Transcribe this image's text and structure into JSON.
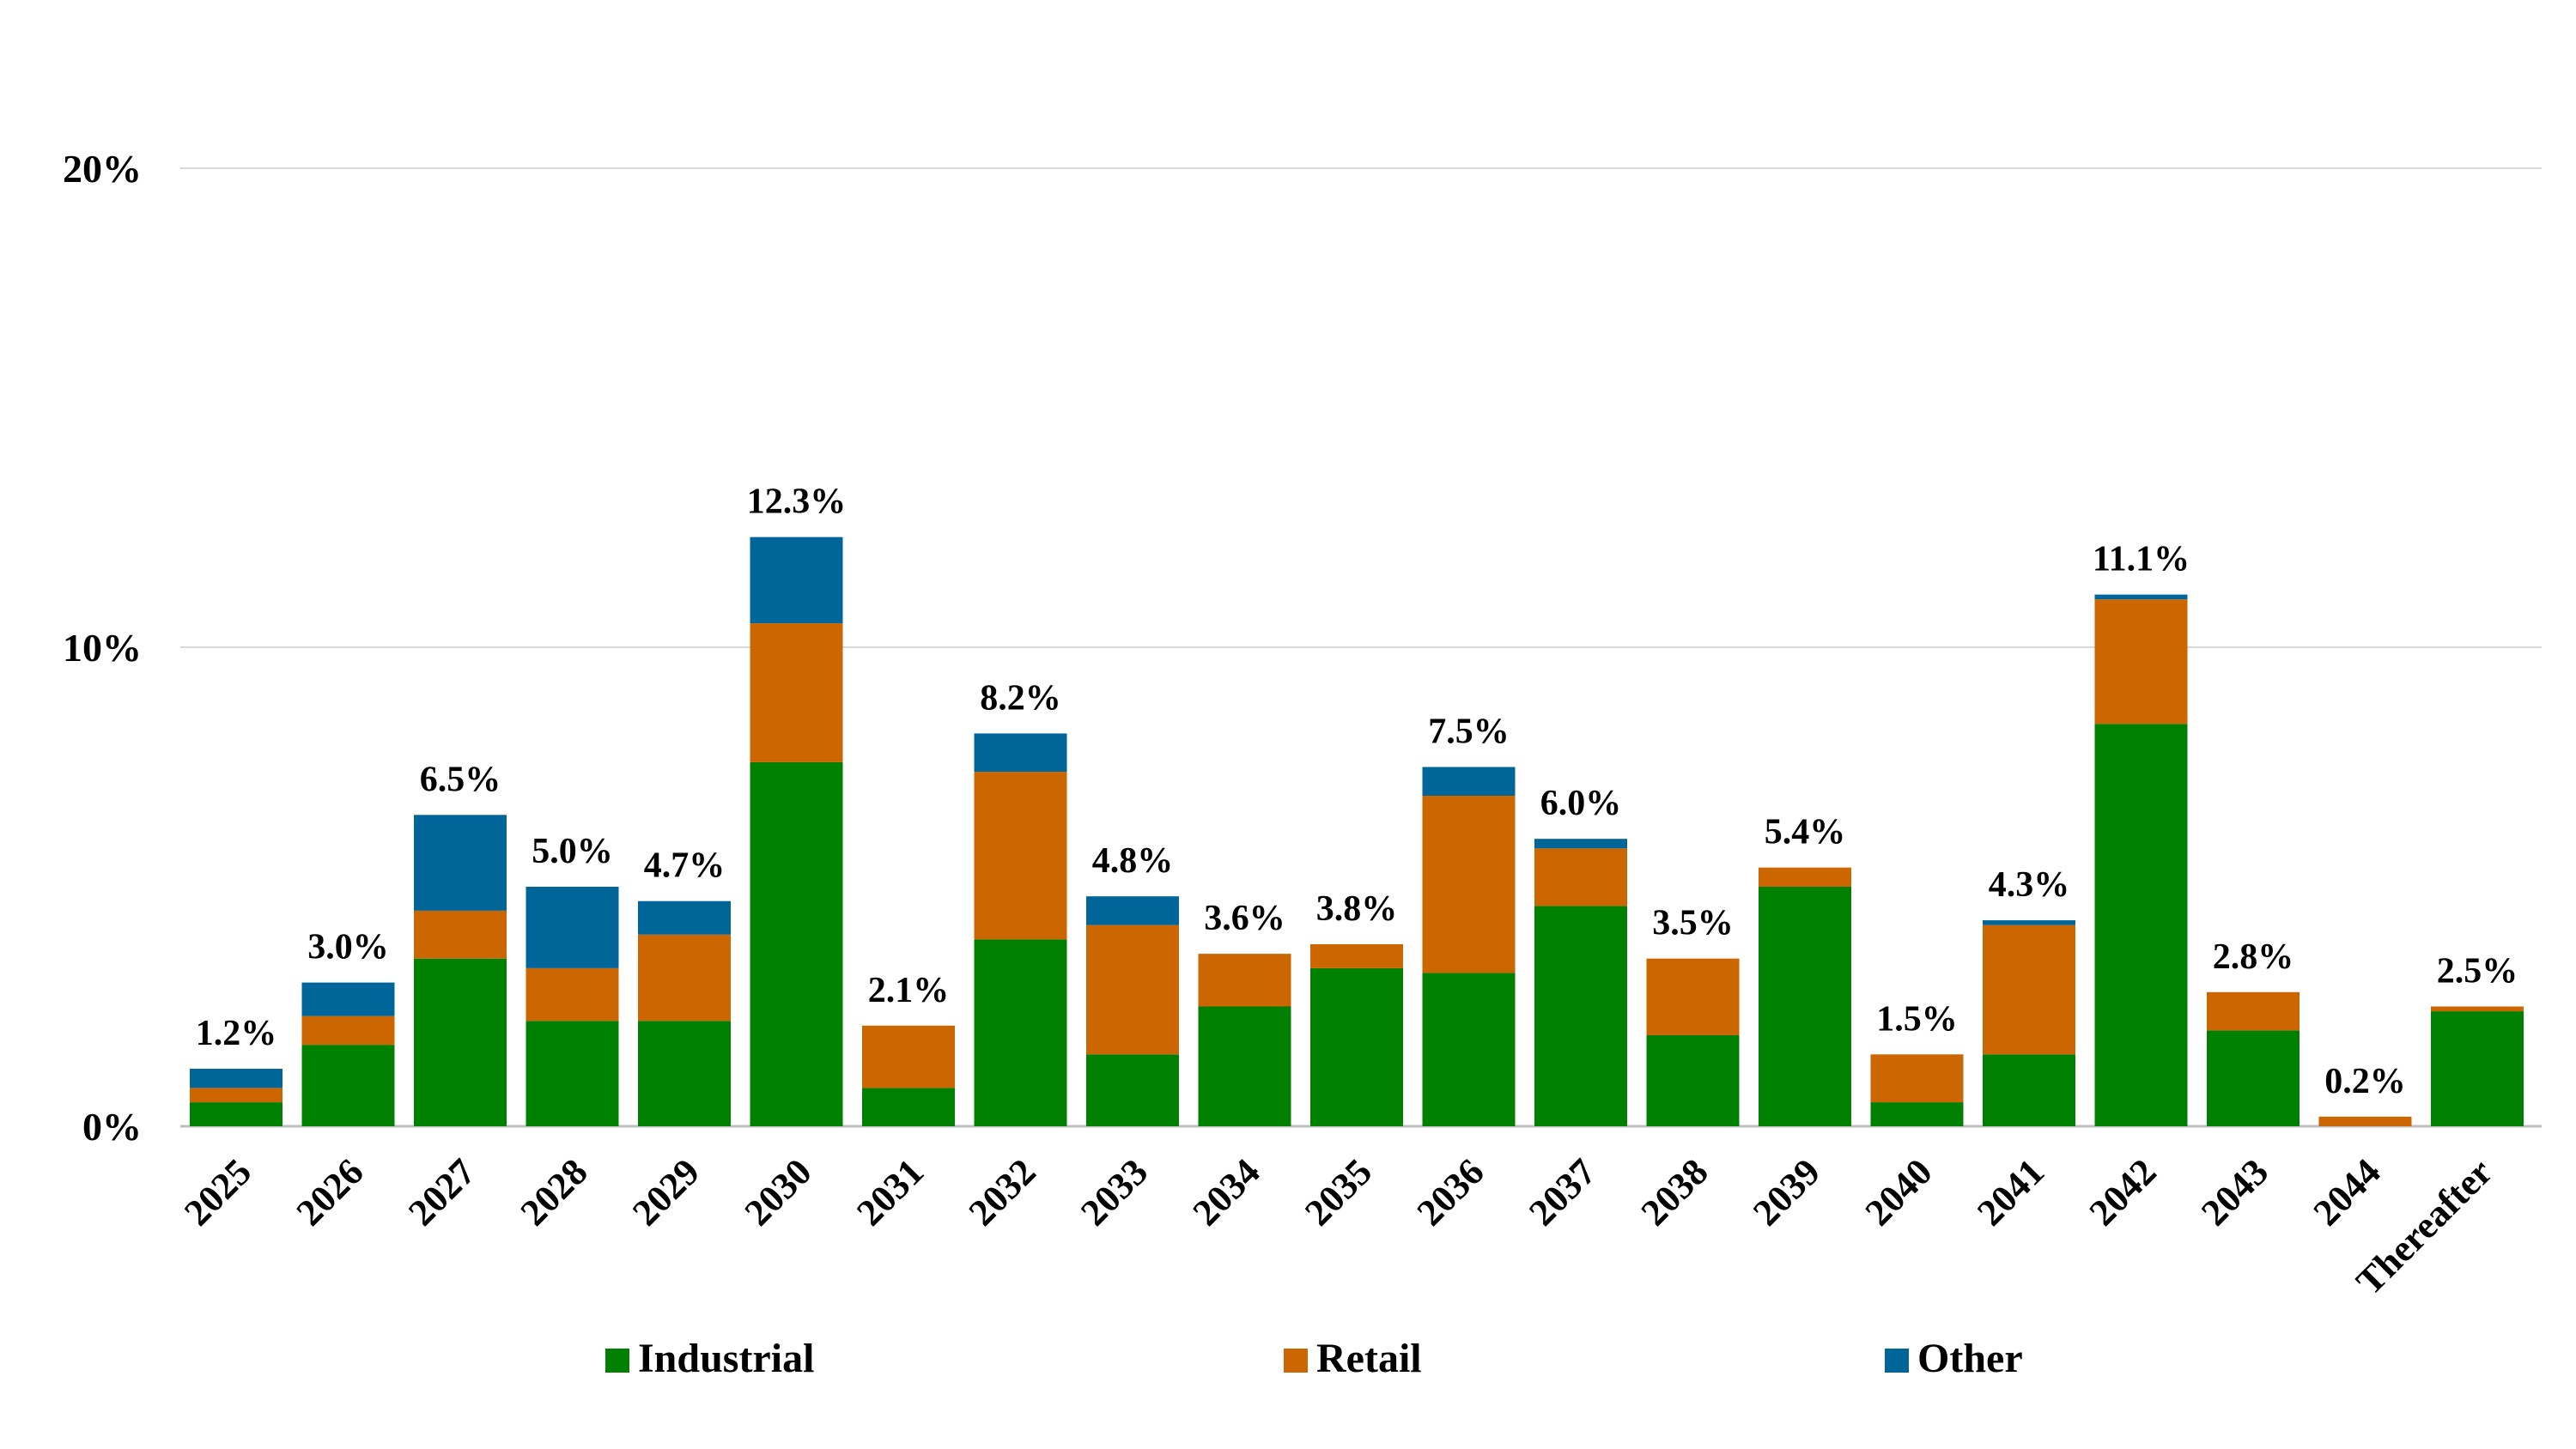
{
  "chart_data": {
    "type": "bar",
    "stacked": true,
    "title": "",
    "xlabel": "",
    "ylabel": "",
    "ylim": [
      0,
      20
    ],
    "yticks": [
      0,
      10,
      20
    ],
    "ytick_labels": [
      "0%",
      "10%",
      "20%"
    ],
    "grid": true,
    "legend": "bottom-center",
    "categories": [
      "2025",
      "2026",
      "2027",
      "2028",
      "2029",
      "2030",
      "2031",
      "2032",
      "2033",
      "2034",
      "2035",
      "2036",
      "2037",
      "2038",
      "2039",
      "2040",
      "2041",
      "2042",
      "2043",
      "2044",
      "Thereafter"
    ],
    "series": [
      {
        "name": "Industrial",
        "color": "#008000",
        "values": [
          0.5,
          1.7,
          3.5,
          2.2,
          2.2,
          7.6,
          0.8,
          3.9,
          1.5,
          2.5,
          3.3,
          3.2,
          4.6,
          1.9,
          5.0,
          0.5,
          1.5,
          8.4,
          2.0,
          0.0,
          2.4
        ]
      },
      {
        "name": "Retail",
        "color": "#CC6600",
        "values": [
          0.3,
          0.6,
          1.0,
          1.1,
          1.8,
          2.9,
          1.3,
          3.5,
          2.7,
          1.1,
          0.5,
          3.7,
          1.2,
          1.6,
          0.4,
          1.0,
          2.7,
          2.6,
          0.8,
          0.2,
          0.1
        ]
      },
      {
        "name": "Other",
        "color": "#006699",
        "values": [
          0.4,
          0.7,
          2.0,
          1.7,
          0.7,
          1.8,
          0.0,
          0.8,
          0.6,
          0.0,
          0.0,
          0.6,
          0.2,
          0.0,
          0.0,
          0.0,
          0.1,
          0.1,
          0.0,
          0.0,
          0.0
        ]
      }
    ],
    "totals": [
      "1.2%",
      "3.0%",
      "6.5%",
      "5.0%",
      "4.7%",
      "12.3%",
      "2.1%",
      "8.2%",
      "4.8%",
      "3.6%",
      "3.8%",
      "7.5%",
      "6.0%",
      "3.5%",
      "5.4%",
      "1.5%",
      "4.3%",
      "11.1%",
      "2.8%",
      "0.2%",
      "2.5%"
    ]
  }
}
